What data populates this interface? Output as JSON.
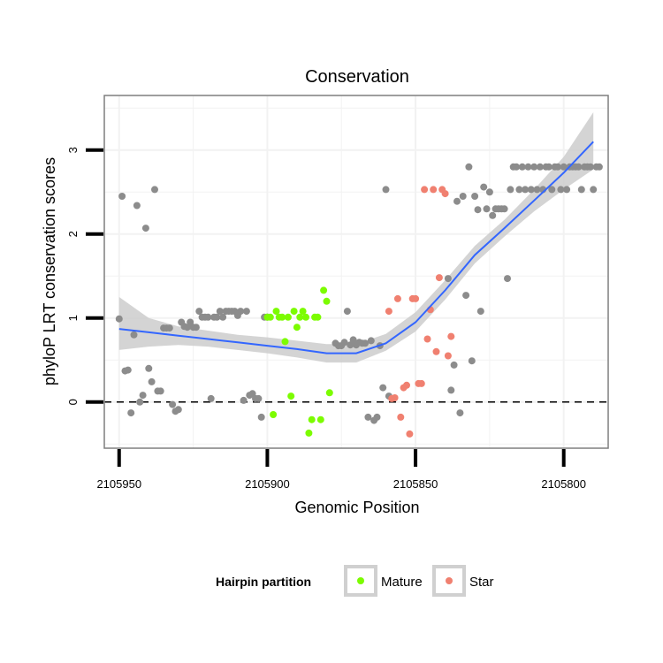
{
  "chart_data": {
    "type": "scatter",
    "title": "Conservation",
    "xlabel": "Genomic Position",
    "ylabel": "phyloP LRT conservation scores",
    "x_reversed": true,
    "xlim": [
      2105955,
      2105785
    ],
    "ylim": [
      -0.55,
      3.65
    ],
    "x_ticks": [
      2105950,
      2105900,
      2105850,
      2105800
    ],
    "x_tick_labels": [
      "2105950",
      "2105900",
      "2105850",
      "2105800"
    ],
    "y_ticks": [
      0,
      1,
      2,
      3
    ],
    "y_tick_labels": [
      "0",
      "1",
      "2",
      "3"
    ],
    "grid": true,
    "reference_line": {
      "y": 0,
      "style": "dashed"
    },
    "legend": {
      "title": "Hairpin partition",
      "position": "bottom",
      "entries": [
        {
          "label": "Mature",
          "color": "#7cfc00"
        },
        {
          "label": "Star",
          "color": "#f08070"
        }
      ]
    },
    "colors": {
      "other": "#8c8c8c",
      "mature": "#7cfc00",
      "star": "#f08070",
      "smooth": "#3366ff",
      "ribbon": "#cccccc",
      "panel_border": "#7f7f7f",
      "grid": "#f2f2f2"
    },
    "series": [
      {
        "name": "Other",
        "points": [
          [
            2105950,
            0.99
          ],
          [
            2105949,
            2.45
          ],
          [
            2105948,
            0.37
          ],
          [
            2105947,
            0.38
          ],
          [
            2105946,
            -0.13
          ],
          [
            2105945,
            0.8
          ],
          [
            2105944,
            2.34
          ],
          [
            2105943,
            0.0
          ],
          [
            2105942,
            0.08
          ],
          [
            2105941,
            2.07
          ],
          [
            2105940,
            0.4
          ],
          [
            2105939,
            0.24
          ],
          [
            2105938,
            2.53
          ],
          [
            2105937,
            0.13
          ],
          [
            2105936,
            0.13
          ],
          [
            2105935,
            0.88
          ],
          [
            2105934,
            0.88
          ],
          [
            2105933,
            0.88
          ],
          [
            2105932,
            -0.03
          ],
          [
            2105931,
            -0.11
          ],
          [
            2105930,
            -0.09
          ],
          [
            2105929,
            0.95
          ],
          [
            2105928,
            0.9
          ],
          [
            2105927,
            0.89
          ],
          [
            2105926,
            0.95
          ],
          [
            2105925,
            0.89
          ],
          [
            2105924,
            0.89
          ],
          [
            2105923,
            1.08
          ],
          [
            2105922,
            1.01
          ],
          [
            2105921,
            1.01
          ],
          [
            2105920,
            1.01
          ],
          [
            2105919,
            0.04
          ],
          [
            2105918,
            1.01
          ],
          [
            2105917,
            1.01
          ],
          [
            2105916,
            1.08
          ],
          [
            2105915,
            1.01
          ],
          [
            2105914,
            1.08
          ],
          [
            2105913,
            1.08
          ],
          [
            2105912,
            1.08
          ],
          [
            2105911,
            1.08
          ],
          [
            2105910,
            1.03
          ],
          [
            2105909,
            1.08
          ],
          [
            2105908,
            0.02
          ],
          [
            2105907,
            1.08
          ],
          [
            2105906,
            0.08
          ],
          [
            2105905,
            0.1
          ],
          [
            2105904,
            0.04
          ],
          [
            2105903,
            0.04
          ],
          [
            2105902,
            -0.18
          ],
          [
            2105901,
            1.01
          ],
          [
            2105900,
            1.01
          ],
          [
            2105877,
            0.7
          ],
          [
            2105876,
            0.67
          ],
          [
            2105875,
            0.67
          ],
          [
            2105874,
            0.71
          ],
          [
            2105873,
            1.08
          ],
          [
            2105872,
            0.68
          ],
          [
            2105871,
            0.74
          ],
          [
            2105870,
            0.68
          ],
          [
            2105869,
            0.71
          ],
          [
            2105868,
            0.7
          ],
          [
            2105867,
            0.7
          ],
          [
            2105866,
            -0.18
          ],
          [
            2105865,
            0.73
          ],
          [
            2105864,
            -0.22
          ],
          [
            2105863,
            -0.18
          ],
          [
            2105862,
            0.67
          ],
          [
            2105861,
            0.17
          ],
          [
            2105860,
            2.53
          ],
          [
            2105859,
            0.07
          ],
          [
            2105839,
            1.47
          ],
          [
            2105838,
            0.14
          ],
          [
            2105837,
            0.44
          ],
          [
            2105836,
            2.39
          ],
          [
            2105835,
            -0.13
          ],
          [
            2105834,
            2.45
          ],
          [
            2105833,
            1.27
          ],
          [
            2105832,
            2.8
          ],
          [
            2105831,
            0.49
          ],
          [
            2105830,
            2.45
          ],
          [
            2105829,
            2.29
          ],
          [
            2105828,
            1.08
          ],
          [
            2105827,
            2.56
          ],
          [
            2105826,
            2.3
          ],
          [
            2105825,
            2.5
          ],
          [
            2105824,
            2.22
          ],
          [
            2105823,
            2.3
          ],
          [
            2105822,
            2.3
          ],
          [
            2105821,
            2.3
          ],
          [
            2105820,
            2.3
          ],
          [
            2105819,
            1.47
          ],
          [
            2105818,
            2.53
          ],
          [
            2105817,
            2.8
          ],
          [
            2105816,
            2.8
          ],
          [
            2105815,
            2.53
          ],
          [
            2105814,
            2.8
          ],
          [
            2105813,
            2.53
          ],
          [
            2105812,
            2.8
          ],
          [
            2105811,
            2.53
          ],
          [
            2105810,
            2.8
          ],
          [
            2105809,
            2.53
          ],
          [
            2105808,
            2.8
          ],
          [
            2105807,
            2.53
          ],
          [
            2105806,
            2.8
          ],
          [
            2105805,
            2.8
          ],
          [
            2105804,
            2.53
          ],
          [
            2105803,
            2.8
          ],
          [
            2105802,
            2.8
          ],
          [
            2105801,
            2.53
          ],
          [
            2105800,
            2.8
          ],
          [
            2105799,
            2.53
          ],
          [
            2105798,
            2.8
          ],
          [
            2105797,
            2.8
          ],
          [
            2105796,
            2.8
          ],
          [
            2105795,
            2.8
          ],
          [
            2105794,
            2.53
          ],
          [
            2105793,
            2.8
          ],
          [
            2105792,
            2.8
          ],
          [
            2105791,
            2.8
          ],
          [
            2105790,
            2.53
          ],
          [
            2105789,
            2.8
          ],
          [
            2105788,
            2.8
          ]
        ]
      },
      {
        "name": "Mature",
        "points": [
          [
            2105900,
            1.01
          ],
          [
            2105899,
            1.01
          ],
          [
            2105898,
            -0.15
          ],
          [
            2105897,
            1.08
          ],
          [
            2105896,
            1.01
          ],
          [
            2105895,
            1.01
          ],
          [
            2105894,
            0.72
          ],
          [
            2105893,
            1.01
          ],
          [
            2105892,
            0.07
          ],
          [
            2105891,
            1.08
          ],
          [
            2105890,
            0.89
          ],
          [
            2105889,
            1.01
          ],
          [
            2105888,
            1.08
          ],
          [
            2105887,
            1.01
          ],
          [
            2105886,
            -0.37
          ],
          [
            2105885,
            -0.21
          ],
          [
            2105884,
            1.01
          ],
          [
            2105883,
            1.01
          ],
          [
            2105882,
            -0.21
          ],
          [
            2105881,
            1.33
          ],
          [
            2105880,
            1.2
          ],
          [
            2105879,
            0.11
          ]
        ]
      },
      {
        "name": "Star",
        "points": [
          [
            2105859,
            1.08
          ],
          [
            2105858,
            0.04
          ],
          [
            2105857,
            0.05
          ],
          [
            2105856,
            1.23
          ],
          [
            2105855,
            -0.18
          ],
          [
            2105854,
            0.17
          ],
          [
            2105853,
            0.2
          ],
          [
            2105852,
            -0.38
          ],
          [
            2105851,
            1.23
          ],
          [
            2105850,
            1.23
          ],
          [
            2105849,
            0.22
          ],
          [
            2105848,
            0.22
          ],
          [
            2105847,
            2.53
          ],
          [
            2105846,
            0.75
          ],
          [
            2105845,
            1.1
          ],
          [
            2105844,
            2.53
          ],
          [
            2105843,
            0.6
          ],
          [
            2105842,
            1.48
          ],
          [
            2105841,
            2.53
          ],
          [
            2105840,
            2.48
          ],
          [
            2105839,
            0.55
          ],
          [
            2105838,
            0.78
          ]
        ]
      }
    ],
    "smooth": [
      [
        2105950,
        0.87,
        0.62,
        1.25
      ],
      [
        2105940,
        0.83,
        0.66,
        1.0
      ],
      [
        2105930,
        0.79,
        0.68,
        0.9
      ],
      [
        2105920,
        0.75,
        0.66,
        0.85
      ],
      [
        2105910,
        0.71,
        0.62,
        0.8
      ],
      [
        2105900,
        0.67,
        0.58,
        0.77
      ],
      [
        2105890,
        0.63,
        0.53,
        0.73
      ],
      [
        2105880,
        0.58,
        0.47,
        0.69
      ],
      [
        2105870,
        0.58,
        0.47,
        0.69
      ],
      [
        2105860,
        0.7,
        0.61,
        0.81
      ],
      [
        2105850,
        0.95,
        0.84,
        1.07
      ],
      [
        2105840,
        1.33,
        1.22,
        1.45
      ],
      [
        2105830,
        1.75,
        1.65,
        1.86
      ],
      [
        2105820,
        2.07,
        1.97,
        2.17
      ],
      [
        2105810,
        2.4,
        2.27,
        2.53
      ],
      [
        2105800,
        2.73,
        2.53,
        2.92
      ],
      [
        2105790,
        3.1,
        2.77,
        3.45
      ]
    ]
  }
}
